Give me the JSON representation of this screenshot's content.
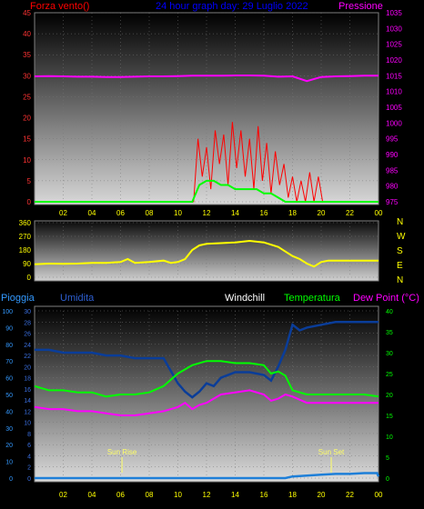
{
  "colors": {
    "background": "#000000",
    "axis": "#9a9a9a",
    "wind_label": "#ff0000",
    "title_label": "#0000ff",
    "pressure": "#ff00ff",
    "wind_gust": "#ff0000",
    "wind_avg": "#00ff00",
    "direction": "#ffff00",
    "rain": "#1e7fd8",
    "humidity": "#0a3d99",
    "temperature": "#00ff00",
    "dew_point": "#ff00ff",
    "windchill": "#ffffff",
    "humidity_label": "#2e5fd1",
    "tick_time": "#ffff00",
    "tick_left": "#ff3333",
    "tick_rain": "#3399ff",
    "sun_label": "#ffff66"
  },
  "chart_data": [
    {
      "type": "line",
      "title": "24 hour graph day: 29 Luglio 2022",
      "ylabel_left": "Forza vento()",
      "ylabel_right": "Pressione",
      "x_ticks": [
        "02",
        "04",
        "06",
        "08",
        "10",
        "12",
        "14",
        "16",
        "18",
        "20",
        "22",
        "00"
      ],
      "ylim_left": [
        0,
        45
      ],
      "yticks_left": [
        "45",
        "40",
        "35",
        "30",
        "25",
        "20",
        "15",
        "10",
        "5",
        "0"
      ],
      "ylim_right": [
        975,
        1035
      ],
      "yticks_right": [
        "1035",
        "1030",
        "1025",
        "1020",
        "1015",
        "1010",
        "1005",
        "1000",
        "995",
        "990",
        "985",
        "980",
        "975"
      ],
      "grid": true,
      "series": [
        {
          "axis": "right",
          "x": [
            0,
            1,
            2,
            3,
            4,
            5,
            6,
            7,
            8,
            9,
            10,
            11,
            12,
            13,
            14,
            15,
            16,
            17,
            18,
            19,
            20,
            21,
            22,
            23,
            24
          ],
          "values": [
            1014.8,
            1014.9,
            1014.8,
            1014.7,
            1014.7,
            1014.6,
            1014.6,
            1014.7,
            1014.8,
            1014.8,
            1014.9,
            1015.0,
            1015.0,
            1015.0,
            1015.1,
            1015.1,
            1015.0,
            1014.7,
            1014.8,
            1013.3,
            1014.6,
            1014.8,
            1014.9,
            1015.0,
            1015.0
          ]
        },
        {
          "axis": "left",
          "x": [
            0,
            11.1,
            11.4,
            11.7,
            12.0,
            12.3,
            12.6,
            12.9,
            13.2,
            13.5,
            13.8,
            14.1,
            14.4,
            14.7,
            15.0,
            15.3,
            15.6,
            15.9,
            16.2,
            16.5,
            16.8,
            17.1,
            17.4,
            17.7,
            18.0,
            18.3,
            18.6,
            18.9,
            19.2,
            19.5,
            19.8,
            20.1,
            24
          ],
          "values": [
            0,
            0,
            15,
            6,
            13,
            3,
            17,
            9,
            16,
            4,
            19,
            8,
            17,
            6,
            15,
            3,
            18,
            5,
            14,
            2,
            12,
            4,
            9,
            1,
            6,
            0,
            5,
            0,
            7,
            0,
            6,
            0,
            0
          ]
        },
        {
          "axis": "left",
          "x": [
            0,
            11.0,
            11.5,
            12.0,
            12.5,
            13.0,
            13.5,
            14.0,
            14.5,
            15.0,
            15.5,
            16.0,
            16.5,
            17.0,
            17.5,
            18.0,
            18.5,
            19.0,
            19.5,
            20.0,
            24
          ],
          "values": [
            0,
            0,
            4,
            5,
            5,
            4,
            4,
            3,
            3,
            3,
            3,
            2,
            2,
            1,
            0,
            0,
            0,
            0,
            0,
            0,
            0
          ]
        }
      ]
    },
    {
      "type": "line",
      "ylim": [
        0,
        360
      ],
      "yticks": [
        "360",
        "270",
        "180",
        "90",
        "0"
      ],
      "compass_labels": [
        "N",
        "W",
        "S",
        "E",
        "N"
      ],
      "x_ticks": [],
      "grid": true,
      "series": [
        {
          "x": [
            0,
            1,
            2,
            3,
            4,
            5,
            6,
            6.5,
            7,
            8,
            9,
            9.5,
            10,
            10.5,
            11,
            11.5,
            12,
            13,
            14,
            15,
            16,
            17,
            17.5,
            18,
            18.5,
            19,
            19.5,
            20,
            20.5,
            21,
            22,
            23,
            24
          ],
          "values": [
            85,
            90,
            88,
            90,
            95,
            95,
            100,
            120,
            95,
            100,
            110,
            95,
            100,
            120,
            180,
            210,
            220,
            225,
            230,
            240,
            230,
            200,
            170,
            140,
            120,
            90,
            70,
            100,
            110,
            110,
            110,
            110,
            110
          ]
        }
      ]
    },
    {
      "type": "line",
      "label_rain": "Pioggia",
      "label_humidity": "Umidita",
      "label_windchill": "Windchill",
      "label_temperature": "Temperatura",
      "label_dewpoint": "Dew Point (°C)",
      "x_ticks": [
        "02",
        "04",
        "06",
        "08",
        "10",
        "12",
        "14",
        "16",
        "18",
        "20",
        "22",
        "00"
      ],
      "yticks_rain": [
        "100",
        "90",
        "80",
        "70",
        "60",
        "50",
        "40",
        "30",
        "20",
        "10",
        "0"
      ],
      "yticks_humidity": [
        "30",
        "28",
        "26",
        "24",
        "22",
        "20",
        "18",
        "16",
        "14",
        "12",
        "10",
        "8",
        "6",
        "4",
        "2",
        "0"
      ],
      "yticks_temp": [
        "40",
        "35",
        "30",
        "25",
        "20",
        "15",
        "10",
        "5",
        "0"
      ],
      "ylim_rain": [
        0,
        100
      ],
      "ylim_humidity": [
        0,
        30
      ],
      "ylim_temp": [
        0,
        40
      ],
      "annotations": [
        {
          "text": "Sun Rise",
          "x": 6.1
        },
        {
          "text": "Sun Set",
          "x": 20.7
        }
      ],
      "series": [
        {
          "axis": "humidity",
          "x": [
            0,
            1,
            2,
            3,
            4,
            5,
            6,
            7,
            8,
            9,
            10,
            10.5,
            11,
            11.5,
            12,
            12.5,
            13,
            14,
            15,
            16,
            16.5,
            17,
            17.5,
            18,
            18.5,
            19,
            20,
            21,
            22,
            23,
            24
          ],
          "values": [
            23,
            23,
            22.5,
            22.5,
            22.5,
            22,
            22,
            21.5,
            21.5,
            21.5,
            17,
            15.5,
            14.5,
            15.5,
            17,
            16.5,
            18,
            19,
            19,
            18.5,
            17.5,
            20,
            23,
            27.5,
            26.5,
            27,
            27.5,
            28,
            28,
            28,
            28
          ]
        },
        {
          "axis": "temp",
          "x": [
            0,
            1,
            2,
            3,
            4,
            5,
            6,
            7,
            8,
            9,
            10,
            11,
            12,
            13,
            14,
            15,
            16,
            16.5,
            17,
            17.5,
            18,
            19,
            20,
            21,
            22,
            23,
            24
          ],
          "values": [
            22,
            21,
            21,
            20.5,
            20.5,
            19.5,
            20,
            20,
            20.5,
            22,
            25,
            27,
            28,
            28,
            27.5,
            27.5,
            27,
            25,
            25.5,
            24.5,
            21,
            20,
            20,
            20,
            20,
            20,
            19.5
          ]
        },
        {
          "axis": "temp",
          "x": [
            0,
            1,
            2,
            3,
            4,
            5,
            6,
            7,
            8,
            9,
            10,
            10.5,
            11,
            11.5,
            12,
            13,
            14,
            15,
            16,
            16.5,
            17,
            17.5,
            18,
            19,
            20,
            21,
            22,
            23,
            24
          ],
          "values": [
            17,
            16.5,
            16.5,
            16,
            16,
            15.5,
            15,
            15,
            15.5,
            16,
            17,
            18,
            16.5,
            17.5,
            18,
            20,
            20.5,
            21,
            20,
            18.5,
            19,
            20,
            19.5,
            18,
            18,
            18,
            18,
            18,
            18
          ]
        },
        {
          "axis": "rain",
          "x": [
            0,
            17.5,
            18,
            19,
            20,
            21,
            22,
            23,
            23.9,
            24
          ],
          "values": [
            0,
            0,
            1,
            1.5,
            2,
            2.5,
            2.5,
            3,
            3,
            1
          ]
        }
      ]
    }
  ]
}
